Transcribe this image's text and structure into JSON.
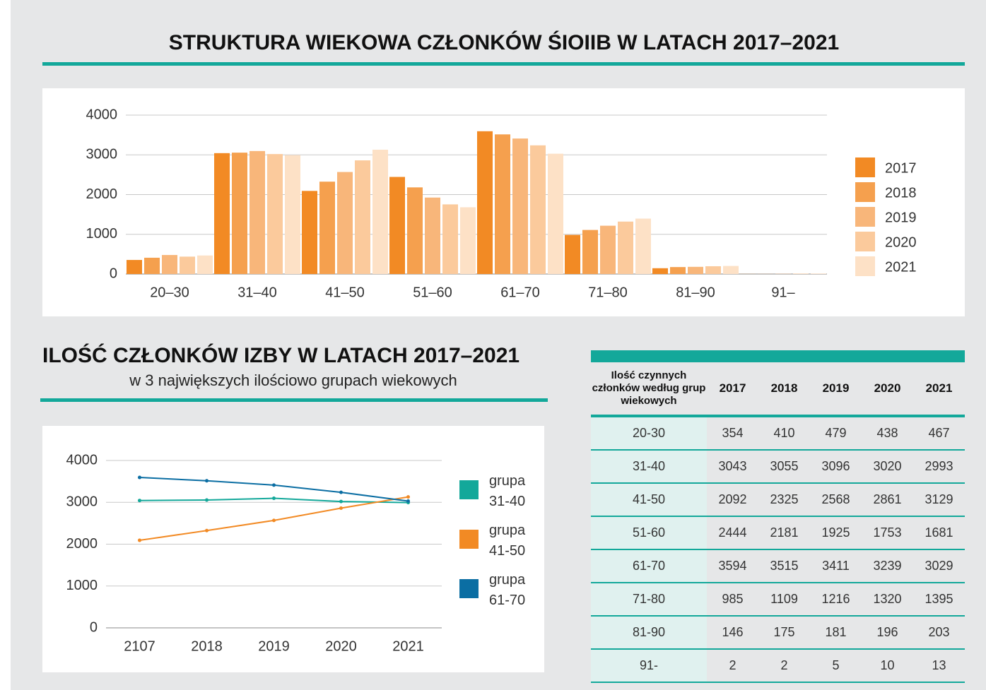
{
  "chart_data": [
    {
      "type": "bar",
      "title": "STRUKTURA WIEKOWA CZŁONKÓW ŚIOIIB W LATACH 2017–2021",
      "categories": [
        "20–30",
        "31–40",
        "41–50",
        "51–60",
        "61–70",
        "71–80",
        "81–90",
        "91–"
      ],
      "series": [
        {
          "name": "2017",
          "color": "#f28a24",
          "values": [
            354,
            3043,
            2092,
            2444,
            3594,
            985,
            146,
            2
          ]
        },
        {
          "name": "2018",
          "color": "#f5a04e",
          "values": [
            410,
            3055,
            2325,
            2181,
            3515,
            1109,
            175,
            2
          ]
        },
        {
          "name": "2019",
          "color": "#f8b67a",
          "values": [
            479,
            3096,
            2568,
            1925,
            3411,
            1216,
            181,
            5
          ]
        },
        {
          "name": "2020",
          "color": "#fbca9c",
          "values": [
            438,
            3020,
            2861,
            1753,
            3239,
            1320,
            196,
            10
          ]
        },
        {
          "name": "2021",
          "color": "#fde1c6",
          "values": [
            467,
            2993,
            3129,
            1681,
            3029,
            1395,
            203,
            13
          ]
        }
      ],
      "ylim": [
        0,
        4000
      ],
      "yticks": [
        0,
        1000,
        2000,
        3000,
        4000
      ],
      "grid": true,
      "legend": "right"
    },
    {
      "type": "line",
      "title": "ILOŚĆ CZŁONKÓW IZBY W LATACH 2017–2021",
      "subtitle": "w 3 największych ilościowo grupach wiekowych",
      "categories": [
        "2107",
        "2018",
        "2019",
        "2020",
        "2021"
      ],
      "series": [
        {
          "name": "grupa 31-40",
          "color": "#13a89a",
          "values": [
            3043,
            3055,
            3096,
            3020,
            2993
          ]
        },
        {
          "name": "grupa 41-50",
          "color": "#f28a24",
          "values": [
            2092,
            2325,
            2568,
            2861,
            3129
          ]
        },
        {
          "name": "grupa 61-70",
          "color": "#0b6ea3",
          "values": [
            3594,
            3515,
            3411,
            3239,
            3029
          ]
        }
      ],
      "ylim": [
        0,
        4000
      ],
      "yticks": [
        0,
        1000,
        2000,
        3000,
        4000
      ],
      "grid": true,
      "legend": "right"
    }
  ],
  "table": {
    "header": [
      "Ilość czynnych członków według grup wiekowych",
      "2017",
      "2018",
      "2019",
      "2020",
      "2021"
    ],
    "rows": [
      [
        "20-30",
        354,
        410,
        479,
        438,
        467
      ],
      [
        "31-40",
        3043,
        3055,
        3096,
        3020,
        2993
      ],
      [
        "41-50",
        2092,
        2325,
        2568,
        2861,
        3129
      ],
      [
        "51-60",
        2444,
        2181,
        1925,
        1753,
        1681
      ],
      [
        "61-70",
        3594,
        3515,
        3411,
        3239,
        3029
      ],
      [
        "71-80",
        985,
        1109,
        1216,
        1320,
        1395
      ],
      [
        "81-90",
        146,
        175,
        181,
        196,
        203
      ],
      [
        "91-",
        2,
        2,
        5,
        10,
        13
      ]
    ]
  }
}
